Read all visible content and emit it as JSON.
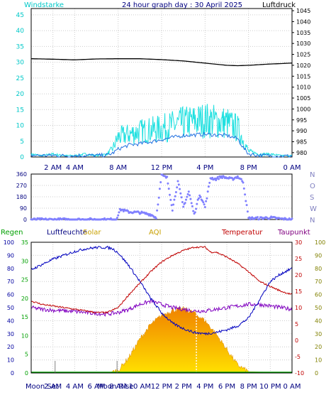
{
  "colors": {
    "wind": "#00d0d0",
    "gust": "#20e0e0",
    "pressure": "#000000",
    "direction": "#8080ff",
    "humidity": "#0000c0",
    "temperature": "#c00000",
    "dewpoint": "#8000c0",
    "rain": "#00a000",
    "solar_fill": "#f0a000",
    "solar_light": "#ffe000",
    "aqi": "#c8a000"
  },
  "header": {
    "wind_title": "Windstarke",
    "title": "24 hour graph day : 30 April 2025",
    "pressure_title": "Luftdruck"
  },
  "legend": {
    "regen": "Regen",
    "luftfeuchte": "Luftfeuchte",
    "solar": "Solar",
    "aqi": "AQI",
    "temperatur": "Temperatur",
    "taupunkt": "Taupunkt"
  },
  "moon": {
    "set_label": "Moon Set",
    "rise_label": "Moon Rise",
    "set_hour": 2.2,
    "rise_hour": 7.9
  },
  "chart_data": [
    {
      "type": "line",
      "panel": "wind_pressure",
      "x_unit": "hour",
      "x_ticks": [
        2,
        4,
        8,
        12,
        16,
        20,
        24
      ],
      "x_tick_labels": [
        "2 AM",
        "4 AM",
        "8 AM",
        "12 PM",
        "4 PM",
        "8 PM",
        "0 AM"
      ],
      "y_left": {
        "label": "Windstarke",
        "ticks": [
          0,
          5,
          10,
          15,
          20,
          25,
          30,
          35,
          40,
          45
        ],
        "range": [
          0,
          47
        ]
      },
      "y_right": {
        "label": "Luftdruck",
        "ticks": [
          980,
          985,
          990,
          995,
          1000,
          1005,
          1010,
          1015,
          1020,
          1025,
          1030,
          1035,
          1040,
          1045
        ],
        "range": [
          978,
          1046
        ]
      },
      "series": [
        {
          "name": "Luftdruck",
          "axis": "right",
          "x": [
            0,
            2,
            4,
            6,
            8,
            10,
            12,
            14,
            16,
            18,
            19,
            20,
            22,
            24
          ],
          "values": [
            1023,
            1022.8,
            1022.5,
            1022.9,
            1023,
            1023,
            1022.6,
            1022,
            1021,
            1020,
            1019.8,
            1020,
            1020.6,
            1021
          ]
        },
        {
          "axis": "left",
          "x": [
            0,
            1,
            2,
            3,
            4,
            5,
            6,
            7,
            7.5,
            8,
            9,
            10,
            11,
            12,
            13,
            14,
            15,
            16,
            17,
            18,
            19,
            19.5,
            20,
            21,
            22,
            23,
            24
          ],
          "values": [
            0.5,
            0.5,
            0.5,
            0.4,
            0.4,
            0.5,
            0.5,
            0.6,
            1.2,
            2.5,
            3.8,
            4.2,
            4.8,
            5.5,
            6.2,
            6.8,
            7.0,
            7.2,
            7.0,
            6.8,
            5.8,
            3.0,
            1.0,
            0.5,
            0.4,
            0.3,
            0.3
          ]
        },
        {
          "axis": "left",
          "x": [
            0,
            1,
            2,
            3,
            4,
            5,
            6,
            7,
            7.5,
            8,
            9,
            10,
            11,
            12,
            13,
            14,
            15,
            16,
            17,
            18,
            19,
            19.5,
            20,
            21,
            22,
            23,
            24
          ],
          "values": [
            1,
            0.5,
            1,
            0.5,
            0.5,
            1,
            0.5,
            1,
            3,
            7,
            8,
            9,
            9.5,
            10,
            11,
            12,
            12.5,
            13,
            12.5,
            12,
            10,
            6,
            2,
            1,
            1,
            0.5,
            0.5
          ]
        }
      ]
    },
    {
      "type": "scatter",
      "panel": "direction",
      "y_ticks": [
        0,
        90,
        180,
        270,
        360
      ],
      "y_right_labels": [
        "N",
        "W",
        "S",
        "O",
        "N"
      ],
      "series": [
        {
          "name": "Wind direction",
          "x": [
            0,
            1,
            2,
            3,
            4,
            5,
            6,
            7,
            7.8,
            8.2,
            9,
            10,
            11,
            11.5,
            12,
            12.5,
            13,
            13.5,
            14,
            14.5,
            15,
            15.5,
            16,
            16.5,
            17,
            17.5,
            18,
            18.5,
            19,
            19.5,
            20,
            21,
            22,
            22.5,
            23,
            24
          ],
          "values": [
            0,
            0,
            0,
            0,
            0,
            0,
            0,
            0,
            0,
            80,
            60,
            55,
            40,
            15,
            350,
            330,
            80,
            300,
            100,
            220,
            40,
            200,
            100,
            330,
            320,
            340,
            330,
            320,
            340,
            300,
            10,
            10,
            15,
            10,
            5,
            0
          ]
        }
      ]
    },
    {
      "type": "line",
      "panel": "weather",
      "x_unit": "hour",
      "x_ticks": [
        2,
        4,
        6,
        8,
        10,
        12,
        14,
        16,
        18,
        20,
        22,
        24
      ],
      "x_tick_labels": [
        "2 AM",
        "4 AM",
        "6 AM",
        "8 AM",
        "10 AM",
        "12 PM",
        "2 PM",
        "4 PM",
        "6 PM",
        "8 PM",
        "10 PM",
        "0 AM"
      ],
      "y_left_outer": {
        "label": "Luftfeuchte",
        "ticks": [
          0,
          10,
          20,
          30,
          40,
          50,
          60,
          70,
          80,
          90,
          100
        ],
        "range": [
          0,
          100
        ]
      },
      "y_left_inner": {
        "label": "Regen",
        "ticks": [
          0,
          5,
          10,
          15,
          20,
          25,
          30,
          35
        ],
        "range": [
          0,
          35
        ]
      },
      "y_right_inner": {
        "label": "Temperatur",
        "ticks": [
          -10,
          -5,
          0,
          5,
          10,
          15,
          20,
          25,
          30
        ],
        "range": [
          -10,
          30
        ]
      },
      "y_right_outer": {
        "label": "AQI",
        "ticks": [
          0,
          10,
          20,
          30,
          40,
          50,
          60,
          70,
          80,
          90,
          100
        ],
        "range": [
          0,
          100
        ]
      },
      "series": [
        {
          "name": "Luftfeuchte",
          "axis": "humidity",
          "x": [
            0,
            1,
            2,
            3,
            4,
            5,
            6,
            7,
            7.5,
            8,
            9,
            10,
            11,
            12,
            13,
            14,
            15,
            16,
            17,
            18,
            19,
            20,
            21,
            22,
            23,
            24
          ],
          "values": [
            79,
            83,
            87,
            90,
            93,
            95,
            96,
            96,
            95,
            92,
            82,
            70,
            57,
            46,
            38,
            34,
            31,
            30,
            31,
            33,
            36,
            42,
            56,
            70,
            76,
            80
          ]
        },
        {
          "name": "Temperatur",
          "axis": "temperature",
          "x": [
            0,
            1,
            2,
            3,
            4,
            5,
            6,
            7,
            8,
            9,
            10,
            11,
            12,
            13,
            14,
            15,
            16,
            16.5,
            17,
            18,
            19,
            20,
            21,
            22,
            23,
            24
          ],
          "values": [
            12,
            11,
            10.5,
            10,
            9.5,
            9,
            8.5,
            8.5,
            10,
            14,
            17.5,
            21,
            24,
            26,
            27.5,
            28.5,
            28.5,
            27,
            27,
            25.5,
            23.5,
            21,
            18,
            16.5,
            15,
            14
          ]
        },
        {
          "name": "Taupunkt",
          "axis": "temperature",
          "x": [
            0,
            1,
            2,
            3,
            4,
            5,
            6,
            7,
            8,
            9,
            10,
            11,
            12,
            13,
            14,
            15,
            16,
            17,
            18,
            19,
            20,
            21,
            22,
            23,
            24
          ],
          "values": [
            10,
            9.5,
            9.2,
            9,
            8.8,
            8.5,
            8.2,
            8,
            8.5,
            9.5,
            11,
            12,
            11,
            10,
            9.5,
            9,
            9,
            9.5,
            10,
            10.5,
            11,
            11,
            10.5,
            10,
            9.5
          ]
        },
        {
          "name": "Solar",
          "axis": "aqi_fill",
          "x": [
            0,
            7,
            8,
            9,
            10,
            11,
            12,
            13,
            14,
            15,
            16,
            17,
            18,
            19,
            20,
            24
          ],
          "values": [
            0,
            0,
            2,
            12,
            26,
            37,
            44,
            48,
            49,
            46,
            40,
            30,
            18,
            6,
            1,
            0
          ]
        },
        {
          "name": "Regen",
          "axis": "rain",
          "x": [
            0,
            24
          ],
          "values": [
            0,
            0
          ]
        }
      ]
    }
  ]
}
